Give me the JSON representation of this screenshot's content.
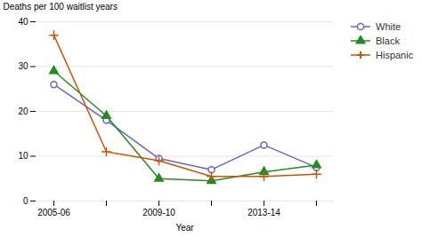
{
  "chart_data": {
    "type": "line",
    "xlabel": "Year",
    "ylabel": "Deaths per 100 waitlist years",
    "categories": [
      "2005-06",
      null,
      "2009-10",
      null,
      "2013-14",
      null
    ],
    "series": [
      {
        "name": "White",
        "color": "#6666cc",
        "marker": "open_circle",
        "values": [
          26,
          18,
          9.5,
          7,
          12.5,
          7.5
        ]
      },
      {
        "name": "Black",
        "color": "#228B22",
        "marker": "triangle",
        "values": [
          29,
          19,
          5,
          4.5,
          6.5,
          8
        ]
      },
      {
        "name": "Hispanic",
        "color": "#cc5500",
        "marker": "plus",
        "values": [
          37,
          11,
          9,
          5.5,
          5.5,
          6
        ]
      }
    ],
    "ylim": [
      0,
      40
    ],
    "yticks": [
      0,
      10,
      20,
      30,
      40
    ],
    "grid": true,
    "legend": "right"
  }
}
